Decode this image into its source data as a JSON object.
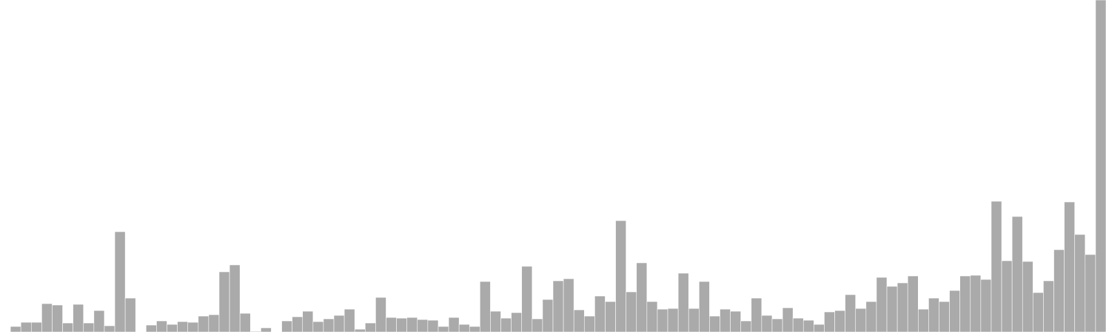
{
  "chart_data": {
    "type": "bar",
    "title": "",
    "xlabel": "",
    "ylabel": "",
    "ylim": [
      0,
      480
    ],
    "grid": false,
    "legend": "none",
    "bar_color": "#aaaaaa",
    "background": "#ffffff",
    "values": [
      0,
      8,
      14,
      14,
      41,
      39,
      13,
      40,
      13,
      31,
      9,
      145,
      49,
      0,
      10,
      16,
      11,
      15,
      14,
      23,
      25,
      87,
      97,
      27,
      1,
      6,
      0,
      16,
      22,
      30,
      15,
      19,
      24,
      33,
      4,
      13,
      50,
      21,
      20,
      21,
      18,
      17,
      8,
      21,
      11,
      8,
      73,
      30,
      20,
      28,
      95,
      19,
      47,
      74,
      77,
      32,
      23,
      52,
      44,
      161,
      58,
      100,
      44,
      33,
      34,
      85,
      34,
      73,
      23,
      33,
      30,
      16,
      49,
      24,
      19,
      35,
      20,
      17,
      11,
      29,
      31,
      54,
      34,
      44,
      79,
      66,
      71,
      81,
      33,
      49,
      44,
      60,
      81,
      82,
      76,
      189,
      103,
      167,
      102,
      57,
      74,
      119,
      188,
      141,
      112,
      480
    ]
  }
}
